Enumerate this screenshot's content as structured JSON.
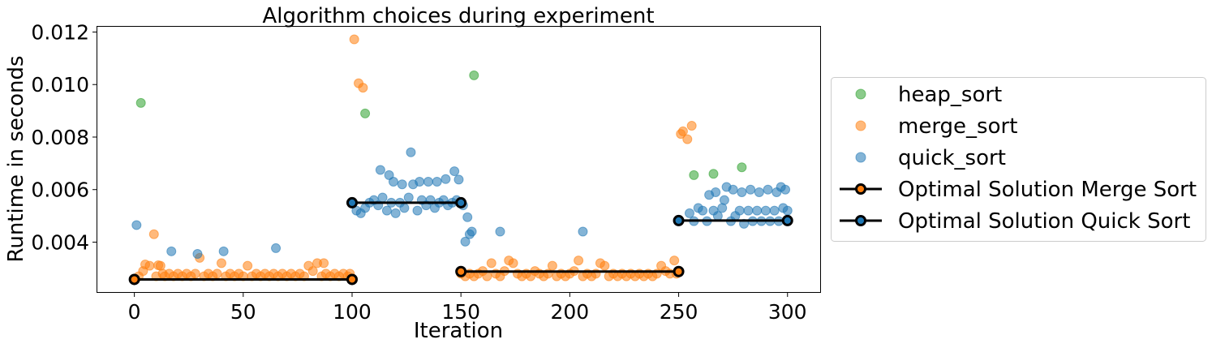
{
  "chart_data": {
    "type": "scatter",
    "title": "Algorithm choices during experiment",
    "xlabel": "Iteration",
    "ylabel": "Runtime in seconds",
    "xlim": [
      -17,
      315
    ],
    "ylim": [
      0.0021,
      0.0122
    ],
    "x_ticks": [
      0,
      50,
      100,
      150,
      200,
      250,
      300
    ],
    "x_tick_labels": [
      "0",
      "50",
      "100",
      "150",
      "200",
      "250",
      "300"
    ],
    "y_ticks": [
      0.004,
      0.006,
      0.008,
      0.01,
      0.012
    ],
    "y_tick_labels": [
      "0.004",
      "0.006",
      "0.008",
      "0.010",
      "0.012"
    ],
    "grid": false,
    "legend_position": "center-right-outside",
    "series": [
      {
        "name": "heap_sort",
        "type": "scatter",
        "color": "#2ca02c",
        "points": [
          [
            3,
            0.0093
          ],
          [
            106,
            0.0089
          ],
          [
            156,
            0.01035
          ],
          [
            257,
            0.00655
          ],
          [
            266,
            0.0066
          ],
          [
            279,
            0.00685
          ]
        ]
      },
      {
        "name": "merge_sort",
        "type": "scatter",
        "color": "#ff7f0e",
        "points": [
          [
            0,
            0.00258
          ],
          [
            2,
            0.0027
          ],
          [
            4,
            0.0029
          ],
          [
            5,
            0.00315
          ],
          [
            7,
            0.0031
          ],
          [
            9,
            0.0043
          ],
          [
            10,
            0.0027
          ],
          [
            11,
            0.00312
          ],
          [
            12,
            0.0031
          ],
          [
            13,
            0.0028
          ],
          [
            14,
            0.0027
          ],
          [
            16,
            0.0028
          ],
          [
            18,
            0.0027
          ],
          [
            20,
            0.0028
          ],
          [
            22,
            0.0027
          ],
          [
            24,
            0.0028
          ],
          [
            26,
            0.0027
          ],
          [
            28,
            0.0028
          ],
          [
            30,
            0.0034
          ],
          [
            32,
            0.0027
          ],
          [
            34,
            0.0028
          ],
          [
            36,
            0.0027
          ],
          [
            38,
            0.0028
          ],
          [
            40,
            0.0032
          ],
          [
            42,
            0.0027
          ],
          [
            44,
            0.0028
          ],
          [
            46,
            0.0027
          ],
          [
            48,
            0.0028
          ],
          [
            50,
            0.0027
          ],
          [
            52,
            0.0031
          ],
          [
            54,
            0.0027
          ],
          [
            56,
            0.0028
          ],
          [
            58,
            0.0027
          ],
          [
            60,
            0.0028
          ],
          [
            62,
            0.0027
          ],
          [
            64,
            0.0028
          ],
          [
            66,
            0.0027
          ],
          [
            68,
            0.0028
          ],
          [
            70,
            0.0027
          ],
          [
            72,
            0.0028
          ],
          [
            74,
            0.0027
          ],
          [
            76,
            0.0028
          ],
          [
            78,
            0.0027
          ],
          [
            80,
            0.0031
          ],
          [
            82,
            0.0029
          ],
          [
            84,
            0.0032
          ],
          [
            86,
            0.0027
          ],
          [
            87,
            0.0032
          ],
          [
            88,
            0.0028
          ],
          [
            90,
            0.0027
          ],
          [
            92,
            0.0028
          ],
          [
            94,
            0.0027
          ],
          [
            96,
            0.0028
          ],
          [
            98,
            0.0027
          ],
          [
            99,
            0.0028
          ],
          [
            101,
            0.01172
          ],
          [
            103,
            0.01005
          ],
          [
            105,
            0.00988
          ],
          [
            150,
            0.0028
          ],
          [
            152,
            0.0027
          ],
          [
            154,
            0.0028
          ],
          [
            156,
            0.0027
          ],
          [
            158,
            0.0028
          ],
          [
            160,
            0.0029
          ],
          [
            162,
            0.0027
          ],
          [
            164,
            0.0032
          ],
          [
            166,
            0.0028
          ],
          [
            168,
            0.0027
          ],
          [
            170,
            0.0029
          ],
          [
            172,
            0.0033
          ],
          [
            174,
            0.0032
          ],
          [
            176,
            0.0028
          ],
          [
            178,
            0.0027
          ],
          [
            180,
            0.0028
          ],
          [
            182,
            0.0027
          ],
          [
            184,
            0.0029
          ],
          [
            186,
            0.0028
          ],
          [
            188,
            0.0027
          ],
          [
            190,
            0.0028
          ],
          [
            192,
            0.0031
          ],
          [
            194,
            0.0027
          ],
          [
            196,
            0.0028
          ],
          [
            198,
            0.0027
          ],
          [
            200,
            0.0028
          ],
          [
            202,
            0.0029
          ],
          [
            204,
            0.0033
          ],
          [
            206,
            0.0027
          ],
          [
            208,
            0.0028
          ],
          [
            210,
            0.0027
          ],
          [
            212,
            0.0028
          ],
          [
            214,
            0.0032
          ],
          [
            216,
            0.0031
          ],
          [
            218,
            0.0027
          ],
          [
            220,
            0.0028
          ],
          [
            222,
            0.0027
          ],
          [
            224,
            0.0028
          ],
          [
            226,
            0.0027
          ],
          [
            228,
            0.0028
          ],
          [
            230,
            0.0027
          ],
          [
            232,
            0.0028
          ],
          [
            234,
            0.0027
          ],
          [
            236,
            0.0028
          ],
          [
            238,
            0.0027
          ],
          [
            240,
            0.0028
          ],
          [
            242,
            0.0031
          ],
          [
            244,
            0.0029
          ],
          [
            246,
            0.0028
          ],
          [
            248,
            0.0033
          ],
          [
            249,
            0.0028
          ],
          [
            251,
            0.00812
          ],
          [
            252,
            0.00822
          ],
          [
            254,
            0.00792
          ],
          [
            256,
            0.00843
          ]
        ]
      },
      {
        "name": "quick_sort",
        "type": "scatter",
        "color": "#1f77b4",
        "points": [
          [
            1,
            0.00465
          ],
          [
            17,
            0.00365
          ],
          [
            29,
            0.00355
          ],
          [
            41,
            0.00365
          ],
          [
            65,
            0.00377
          ],
          [
            100,
            0.0055
          ],
          [
            102,
            0.0052
          ],
          [
            104,
            0.0051
          ],
          [
            106,
            0.0053
          ],
          [
            108,
            0.0055
          ],
          [
            110,
            0.0056
          ],
          [
            112,
            0.0054
          ],
          [
            113,
            0.00675
          ],
          [
            114,
            0.0057
          ],
          [
            116,
            0.0052
          ],
          [
            117,
            0.00655
          ],
          [
            118,
            0.0055
          ],
          [
            119,
            0.0063
          ],
          [
            120,
            0.0051
          ],
          [
            122,
            0.0055
          ],
          [
            123,
            0.0062
          ],
          [
            124,
            0.0053
          ],
          [
            126,
            0.0057
          ],
          [
            127,
            0.00742
          ],
          [
            128,
            0.0062
          ],
          [
            130,
            0.0052
          ],
          [
            131,
            0.0063
          ],
          [
            132,
            0.0056
          ],
          [
            134,
            0.0054
          ],
          [
            135,
            0.0063
          ],
          [
            136,
            0.0056
          ],
          [
            138,
            0.0053
          ],
          [
            139,
            0.0063
          ],
          [
            140,
            0.0055
          ],
          [
            142,
            0.0056
          ],
          [
            143,
            0.0064
          ],
          [
            144,
            0.0054
          ],
          [
            146,
            0.0055
          ],
          [
            147,
            0.0067
          ],
          [
            148,
            0.0056
          ],
          [
            149,
            0.00638
          ],
          [
            151,
            0.0054
          ],
          [
            152,
            0.00402
          ],
          [
            153,
            0.00495
          ],
          [
            154,
            0.0043
          ],
          [
            155,
            0.0044
          ],
          [
            168,
            0.0044
          ],
          [
            206,
            0.0044
          ],
          [
            250,
            0.0048
          ],
          [
            255,
            0.0051
          ],
          [
            257,
            0.0048
          ],
          [
            259,
            0.0053
          ],
          [
            261,
            0.0052
          ],
          [
            263,
            0.0048
          ],
          [
            264,
            0.0058
          ],
          [
            266,
            0.0052
          ],
          [
            267,
            0.0059
          ],
          [
            268,
            0.005
          ],
          [
            270,
            0.0053
          ],
          [
            271,
            0.0056
          ],
          [
            272,
            0.0061
          ],
          [
            274,
            0.0048
          ],
          [
            275,
            0.006
          ],
          [
            276,
            0.005
          ],
          [
            278,
            0.0052
          ],
          [
            279,
            0.0059
          ],
          [
            280,
            0.0047
          ],
          [
            282,
            0.0052
          ],
          [
            283,
            0.006
          ],
          [
            284,
            0.0048
          ],
          [
            286,
            0.0052
          ],
          [
            287,
            0.0059
          ],
          [
            288,
            0.0048
          ],
          [
            290,
            0.0052
          ],
          [
            291,
            0.006
          ],
          [
            292,
            0.0048
          ],
          [
            294,
            0.0052
          ],
          [
            295,
            0.0059
          ],
          [
            296,
            0.0048
          ],
          [
            297,
            0.0061
          ],
          [
            298,
            0.0053
          ],
          [
            299,
            0.006
          ],
          [
            300,
            0.0052
          ]
        ]
      },
      {
        "name": "Optimal Solution Merge Sort",
        "type": "line",
        "color": "#000000",
        "marker_color": "#ff7f0e",
        "segments": [
          [
            [
              0,
              0.00258
            ],
            [
              100,
              0.00258
            ]
          ],
          [
            [
              150,
              0.00288
            ],
            [
              250,
              0.00288
            ]
          ]
        ]
      },
      {
        "name": "Optimal Solution Quick Sort",
        "type": "line",
        "color": "#000000",
        "marker_color": "#1f77b4",
        "segments": [
          [
            [
              100,
              0.0055
            ],
            [
              150,
              0.0055
            ]
          ],
          [
            [
              250,
              0.00482
            ],
            [
              300,
              0.00482
            ]
          ]
        ]
      }
    ]
  }
}
